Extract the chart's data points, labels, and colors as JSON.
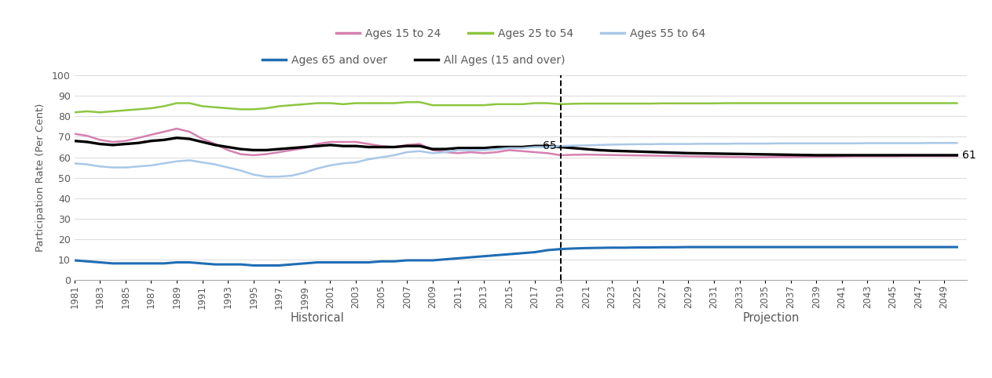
{
  "ylabel": "Participation Rate (Per Cent)",
  "xlabel_historical": "Historical",
  "xlabel_projection": "Projection",
  "years_historical": [
    1981,
    1982,
    1983,
    1984,
    1985,
    1986,
    1987,
    1988,
    1989,
    1990,
    1991,
    1992,
    1993,
    1994,
    1995,
    1996,
    1997,
    1998,
    1999,
    2000,
    2001,
    2002,
    2003,
    2004,
    2005,
    2006,
    2007,
    2008,
    2009,
    2010,
    2011,
    2012,
    2013,
    2014,
    2015,
    2016,
    2017,
    2018,
    2019
  ],
  "years_projection": [
    2019,
    2020,
    2021,
    2022,
    2023,
    2024,
    2025,
    2026,
    2027,
    2028,
    2029,
    2030,
    2031,
    2032,
    2033,
    2034,
    2035,
    2036,
    2037,
    2038,
    2039,
    2040,
    2041,
    2042,
    2043,
    2044,
    2045,
    2046,
    2047,
    2048,
    2049,
    2050
  ],
  "ages_15_24_hist": [
    71.5,
    70.5,
    68.5,
    67.5,
    68.0,
    69.5,
    71.0,
    72.5,
    74.0,
    72.5,
    69.0,
    66.5,
    63.5,
    61.5,
    61.0,
    61.5,
    62.5,
    63.5,
    64.5,
    66.5,
    67.5,
    67.5,
    67.5,
    66.5,
    65.5,
    65.0,
    66.0,
    66.5,
    63.5,
    62.5,
    62.0,
    62.5,
    62.0,
    62.5,
    63.5,
    63.0,
    62.5,
    62.0,
    61.0
  ],
  "ages_15_24_proj": [
    61.0,
    61.2,
    61.3,
    61.2,
    61.1,
    61.0,
    60.9,
    60.8,
    60.7,
    60.6,
    60.5,
    60.4,
    60.3,
    60.2,
    60.1,
    60.0,
    60.0,
    60.1,
    60.1,
    60.2,
    60.3,
    60.3,
    60.4,
    60.5,
    60.5,
    60.5,
    60.5,
    60.6,
    60.6,
    60.6,
    60.6,
    60.6
  ],
  "ages_25_54_hist": [
    82.0,
    82.5,
    82.0,
    82.5,
    83.0,
    83.5,
    84.0,
    85.0,
    86.5,
    86.5,
    85.0,
    84.5,
    84.0,
    83.5,
    83.5,
    84.0,
    85.0,
    85.5,
    86.0,
    86.5,
    86.5,
    86.0,
    86.5,
    86.5,
    86.5,
    86.5,
    87.0,
    87.0,
    85.5,
    85.5,
    85.5,
    85.5,
    85.5,
    86.0,
    86.0,
    86.0,
    86.5,
    86.5,
    86.0
  ],
  "ages_25_54_proj": [
    86.0,
    86.2,
    86.3,
    86.3,
    86.3,
    86.3,
    86.3,
    86.3,
    86.4,
    86.4,
    86.4,
    86.4,
    86.4,
    86.5,
    86.5,
    86.5,
    86.5,
    86.5,
    86.5,
    86.5,
    86.5,
    86.5,
    86.5,
    86.5,
    86.5,
    86.5,
    86.5,
    86.5,
    86.5,
    86.5,
    86.5,
    86.5
  ],
  "ages_55_64_hist": [
    57.0,
    56.5,
    55.5,
    55.0,
    55.0,
    55.5,
    56.0,
    57.0,
    58.0,
    58.5,
    57.5,
    56.5,
    55.0,
    53.5,
    51.5,
    50.5,
    50.5,
    51.0,
    52.5,
    54.5,
    56.0,
    57.0,
    57.5,
    59.0,
    60.0,
    61.0,
    62.5,
    63.0,
    62.0,
    62.5,
    63.5,
    63.5,
    63.5,
    64.0,
    64.5,
    64.5,
    65.0,
    65.0,
    65.5
  ],
  "ages_55_64_proj": [
    65.5,
    65.7,
    65.8,
    66.0,
    66.2,
    66.3,
    66.4,
    66.4,
    66.5,
    66.5,
    66.5,
    66.6,
    66.6,
    66.6,
    66.7,
    66.7,
    66.7,
    66.8,
    66.8,
    66.8,
    66.8,
    66.8,
    66.8,
    66.8,
    66.9,
    66.9,
    66.9,
    66.9,
    66.9,
    67.0,
    67.0,
    67.0
  ],
  "ages_65_over_hist": [
    9.5,
    9.0,
    8.5,
    8.0,
    8.0,
    8.0,
    8.0,
    8.0,
    8.5,
    8.5,
    8.0,
    7.5,
    7.5,
    7.5,
    7.0,
    7.0,
    7.0,
    7.5,
    8.0,
    8.5,
    8.5,
    8.5,
    8.5,
    8.5,
    9.0,
    9.0,
    9.5,
    9.5,
    9.5,
    10.0,
    10.5,
    11.0,
    11.5,
    12.0,
    12.5,
    13.0,
    13.5,
    14.5,
    15.0
  ],
  "ages_65_over_proj": [
    15.0,
    15.3,
    15.5,
    15.6,
    15.7,
    15.7,
    15.8,
    15.8,
    15.9,
    15.9,
    16.0,
    16.0,
    16.0,
    16.0,
    16.0,
    16.0,
    16.0,
    16.0,
    16.0,
    16.0,
    16.0,
    16.0,
    16.0,
    16.0,
    16.0,
    16.0,
    16.0,
    16.0,
    16.0,
    16.0,
    16.0,
    16.0
  ],
  "all_ages_hist": [
    68.0,
    67.5,
    66.5,
    66.0,
    66.5,
    67.0,
    68.0,
    68.5,
    69.5,
    69.0,
    67.5,
    66.0,
    65.0,
    64.0,
    63.5,
    63.5,
    64.0,
    64.5,
    65.0,
    65.5,
    66.0,
    65.5,
    65.5,
    65.0,
    65.0,
    65.0,
    65.5,
    65.5,
    64.0,
    64.0,
    64.5,
    64.5,
    64.5,
    65.0,
    65.0,
    65.0,
    65.5,
    65.5,
    65.0
  ],
  "all_ages_proj": [
    65.0,
    64.5,
    64.0,
    63.5,
    63.2,
    63.0,
    62.8,
    62.6,
    62.4,
    62.2,
    62.0,
    61.9,
    61.8,
    61.7,
    61.6,
    61.5,
    61.4,
    61.3,
    61.2,
    61.1,
    61.0,
    61.0,
    61.0,
    61.0,
    61.0,
    61.0,
    61.0,
    61.0,
    61.0,
    61.0,
    61.0,
    61.0
  ],
  "color_15_24": "#d580b0",
  "color_25_54": "#8dc63f",
  "color_55_64": "#a8c8e8",
  "color_65_over": "#1f6db5",
  "color_all_ages": "#000000",
  "split_year": 2019,
  "ylim": [
    0,
    100
  ],
  "yticks": [
    0,
    10,
    20,
    30,
    40,
    50,
    60,
    70,
    80,
    90,
    100
  ],
  "xtick_years": [
    1981,
    1983,
    1985,
    1987,
    1989,
    1991,
    1993,
    1995,
    1997,
    1999,
    2001,
    2003,
    2005,
    2007,
    2009,
    2011,
    2013,
    2015,
    2017,
    2019,
    2021,
    2023,
    2025,
    2027,
    2029,
    2031,
    2033,
    2035,
    2037,
    2039,
    2041,
    2043,
    2045,
    2047,
    2049
  ],
  "background_color": "#ffffff",
  "line_width": 1.8,
  "legend_row1": [
    "Ages 15 to 24",
    "Ages 25 to 54",
    "Ages 55 to 64"
  ],
  "legend_row2": [
    "Ages 65 and over",
    "All Ages (15 and over)"
  ],
  "text_color": "#595959"
}
